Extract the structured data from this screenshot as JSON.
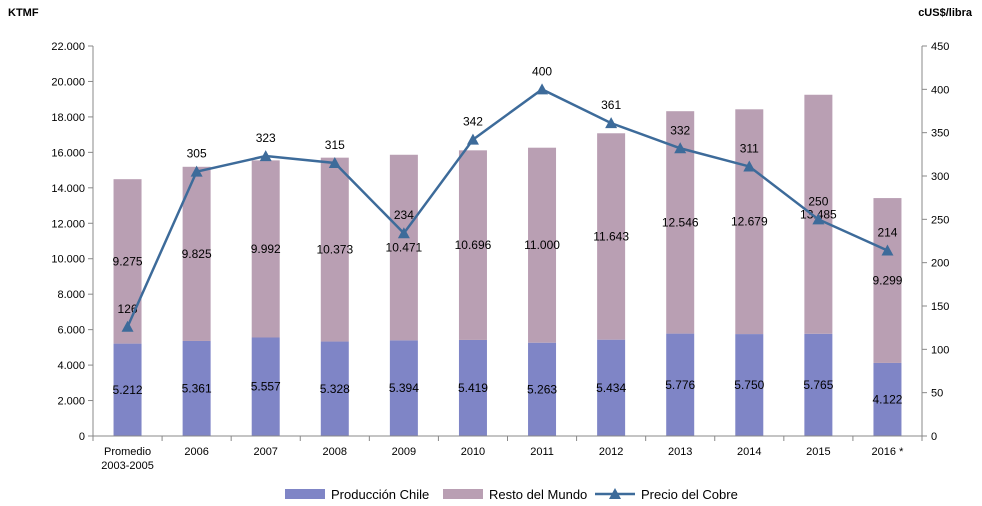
{
  "chart_data": {
    "type": "bar",
    "stacked": true,
    "categories": [
      "Promedio 2003-2005",
      "2006",
      "2007",
      "2008",
      "2009",
      "2010",
      "2011",
      "2012",
      "2013",
      "2014",
      "2015",
      "2016 *"
    ],
    "category_lines": [
      [
        "Promedio",
        "2003-2005"
      ],
      [
        "2006"
      ],
      [
        "2007"
      ],
      [
        "2008"
      ],
      [
        "2009"
      ],
      [
        "2010"
      ],
      [
        "2011"
      ],
      [
        "2012"
      ],
      [
        "2013"
      ],
      [
        "2014"
      ],
      [
        "2015"
      ],
      [
        "2016 *"
      ]
    ],
    "series": [
      {
        "name": "Producción Chile",
        "type": "bar",
        "axis": "left",
        "color": "#7f85c6",
        "values": [
          5212,
          5361,
          5557,
          5328,
          5394,
          5419,
          5263,
          5434,
          5776,
          5750,
          5765,
          4122
        ],
        "labels": [
          "5.212",
          "5.361",
          "5.557",
          "5.328",
          "5.394",
          "5.419",
          "5.263",
          "5.434",
          "5.776",
          "5.750",
          "5.765",
          "4.122"
        ]
      },
      {
        "name": "Resto del Mundo",
        "type": "bar",
        "axis": "left",
        "color": "#b99fb3",
        "values": [
          9275,
          9825,
          9992,
          10373,
          10471,
          10696,
          11000,
          11643,
          12546,
          12679,
          13485,
          9299
        ],
        "labels": [
          "9.275",
          "9.825",
          "9.992",
          "10.373",
          "10.471",
          "10.696",
          "11.000",
          "11.643",
          "12.546",
          "12.679",
          "13.485",
          "9.299"
        ]
      },
      {
        "name": "Precio del Cobre",
        "type": "line",
        "axis": "right",
        "color": "#3d6b9a",
        "marker": "triangle",
        "values": [
          126,
          305,
          323,
          315,
          234,
          342,
          400,
          361,
          332,
          311,
          250,
          214
        ],
        "labels": [
          "126",
          "305",
          "323",
          "315",
          "234",
          "342",
          "400",
          "361",
          "332",
          "311",
          "250",
          "214"
        ]
      }
    ],
    "y_left": {
      "unit_label": "KTMF",
      "range": [
        0,
        22000
      ],
      "ticks": [
        0,
        2000,
        4000,
        6000,
        8000,
        10000,
        12000,
        14000,
        16000,
        18000,
        20000,
        22000
      ],
      "tick_labels": [
        "0",
        "2.000",
        "4.000",
        "6.000",
        "8.000",
        "10.000",
        "12.000",
        "14.000",
        "16.000",
        "18.000",
        "20.000",
        "22.000"
      ]
    },
    "y_right": {
      "unit_label": "cUS$/libra",
      "range": [
        0,
        450
      ],
      "ticks": [
        0,
        50,
        100,
        150,
        200,
        250,
        300,
        350,
        400,
        450
      ],
      "tick_labels": [
        "0",
        "50",
        "100",
        "150",
        "200",
        "250",
        "300",
        "350",
        "400",
        "450"
      ]
    },
    "grid": false,
    "legend_position": "bottom-center"
  }
}
